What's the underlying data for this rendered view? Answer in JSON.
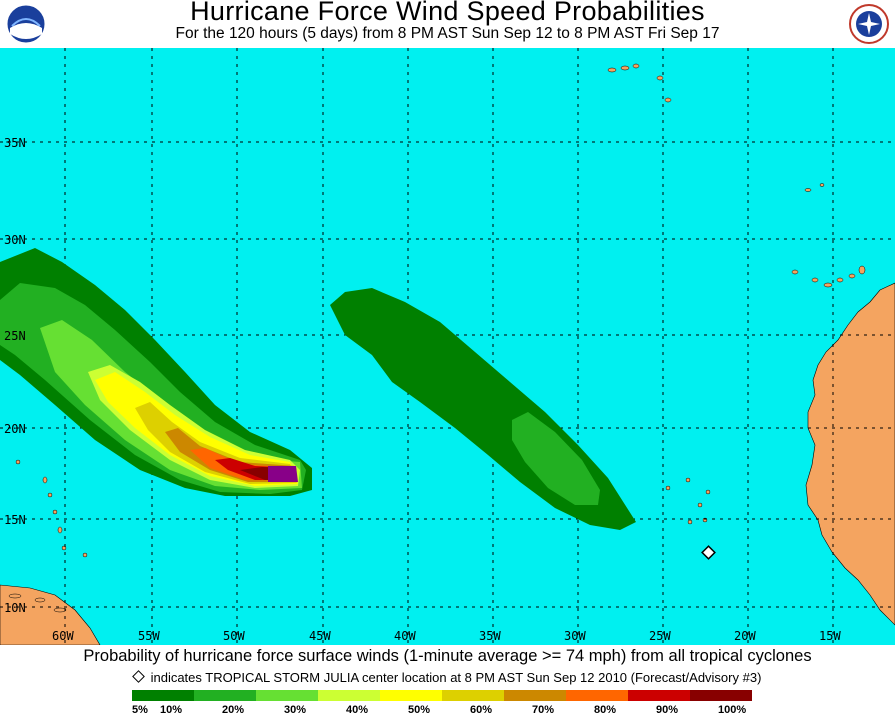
{
  "header": {
    "title": "Hurricane Force Wind Speed Probabilities",
    "subtitle": "For the 120 hours (5 days) from 8 PM AST Sun Sep 12 to 8 PM AST Fri Sep 17",
    "left_logo": "noaa-logo",
    "right_logo": "national-weather-service-logo"
  },
  "map": {
    "colors": {
      "ocean": "#00f0f0",
      "land": "#f4a460",
      "grid": "#000000"
    },
    "lat_labels": [
      "35N",
      "30N",
      "25N",
      "20N",
      "15N",
      "10N"
    ],
    "lon_labels": [
      "60W",
      "55W",
      "50W",
      "45W",
      "40W",
      "35W",
      "30W",
      "25W",
      "20W",
      "15W"
    ]
  },
  "footer": {
    "caption": "Probability of hurricane force surface winds (1-minute average >= 74 mph) from all tropical cyclones",
    "note": "indicates TROPICAL STORM JULIA center location at 8 PM AST Sun Sep 12 2010 (Forecast/Advisory #3)",
    "legend": {
      "colors": [
        "#008000",
        "#22b022",
        "#66e033",
        "#ccff33",
        "#ffff00",
        "#ddd000",
        "#cc8800",
        "#ff6600",
        "#cc0000",
        "#880000",
        "#880088"
      ],
      "labels": [
        "5%",
        "10%",
        "20%",
        "30%",
        "40%",
        "50%",
        "60%",
        "70%",
        "80%",
        "90%",
        "100%"
      ]
    }
  }
}
